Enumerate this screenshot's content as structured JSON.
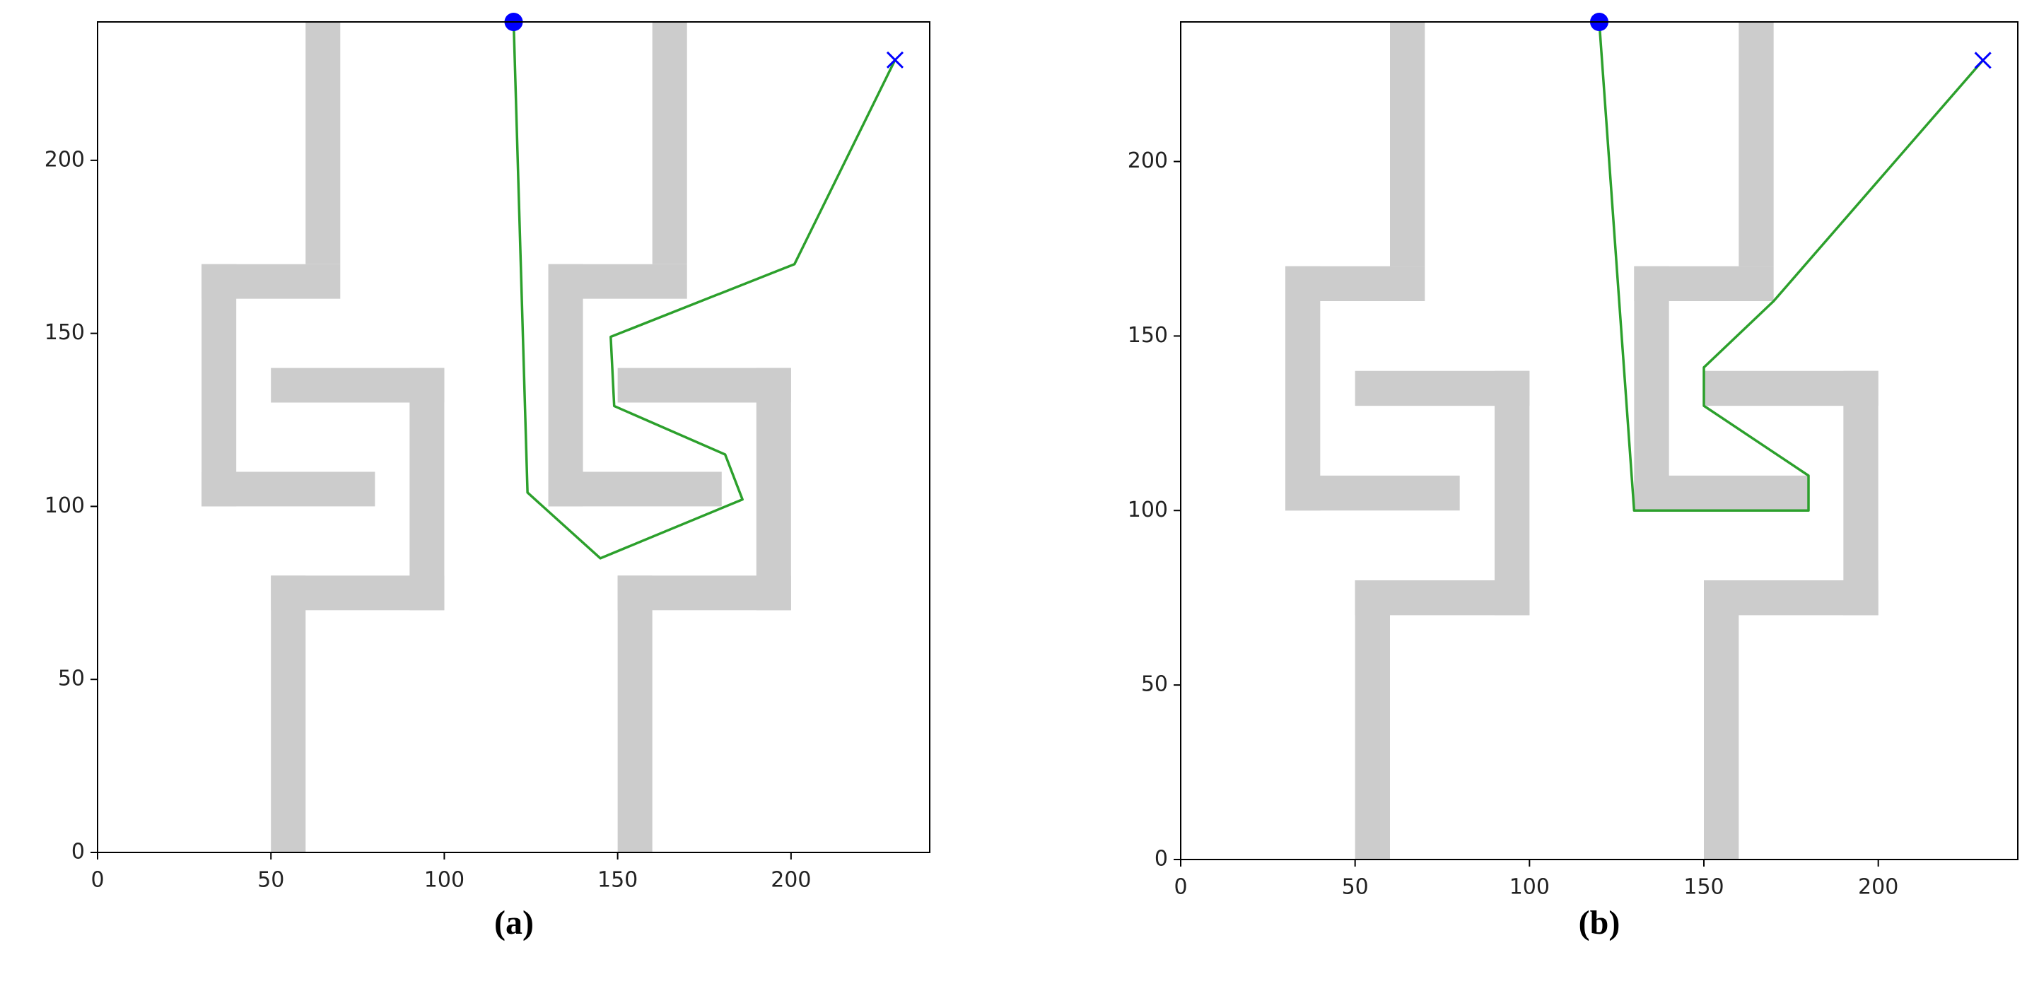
{
  "chart_data": [
    {
      "type": "line",
      "label": "(a)",
      "xlim": [
        0,
        240
      ],
      "ylim": [
        0,
        240
      ],
      "xticks": [
        0,
        50,
        100,
        150,
        200
      ],
      "yticks": [
        0,
        50,
        100,
        150,
        200
      ],
      "obstacle_color": "#cccccc",
      "obstacles": [
        [
          60,
          170,
          70,
          240
        ],
        [
          30,
          160,
          70,
          170
        ],
        [
          30,
          100,
          40,
          170
        ],
        [
          30,
          100,
          80,
          110
        ],
        [
          50,
          130,
          100,
          140
        ],
        [
          90,
          70,
          100,
          140
        ],
        [
          50,
          70,
          100,
          80
        ],
        [
          50,
          0,
          60,
          80
        ],
        [
          160,
          170,
          170,
          240
        ],
        [
          130,
          160,
          170,
          170
        ],
        [
          130,
          100,
          140,
          170
        ],
        [
          130,
          100,
          180,
          110
        ],
        [
          150,
          130,
          200,
          140
        ],
        [
          190,
          70,
          200,
          140
        ],
        [
          150,
          70,
          200,
          80
        ],
        [
          150,
          0,
          160,
          80
        ]
      ],
      "series": [
        {
          "color": "#2ca02c",
          "x": [
            120,
            124,
            145,
            186,
            181,
            149,
            148,
            201,
            230
          ],
          "values": [
            240,
            104,
            85,
            102,
            115,
            129,
            149,
            170,
            229
          ]
        }
      ],
      "start": {
        "x": 120,
        "y": 240,
        "color": "#0000ff"
      },
      "goal": {
        "x": 230,
        "y": 229,
        "color": "#0000ff"
      }
    },
    {
      "type": "line",
      "label": "(b)",
      "xlim": [
        0,
        240
      ],
      "ylim": [
        0,
        240
      ],
      "xticks": [
        0,
        50,
        100,
        150,
        200
      ],
      "yticks": [
        0,
        50,
        100,
        150,
        200
      ],
      "obstacle_color": "#cccccc",
      "obstacles": [
        [
          60,
          170,
          70,
          240
        ],
        [
          30,
          160,
          70,
          170
        ],
        [
          30,
          100,
          40,
          170
        ],
        [
          30,
          100,
          80,
          110
        ],
        [
          50,
          130,
          100,
          140
        ],
        [
          90,
          70,
          100,
          140
        ],
        [
          50,
          70,
          100,
          80
        ],
        [
          50,
          0,
          60,
          80
        ],
        [
          160,
          170,
          170,
          240
        ],
        [
          130,
          160,
          170,
          170
        ],
        [
          130,
          100,
          140,
          170
        ],
        [
          130,
          100,
          180,
          110
        ],
        [
          150,
          130,
          200,
          140
        ],
        [
          190,
          70,
          200,
          140
        ],
        [
          150,
          70,
          200,
          80
        ],
        [
          150,
          0,
          160,
          80
        ]
      ],
      "series": [
        {
          "color": "#2ca02c",
          "x": [
            120,
            130,
            180,
            180,
            150,
            150,
            170,
            230
          ],
          "values": [
            240,
            100,
            100,
            110,
            130,
            141,
            160,
            229
          ]
        }
      ],
      "start": {
        "x": 120,
        "y": 240,
        "color": "#0000ff"
      },
      "goal": {
        "x": 230,
        "y": 229,
        "color": "#0000ff"
      }
    }
  ]
}
